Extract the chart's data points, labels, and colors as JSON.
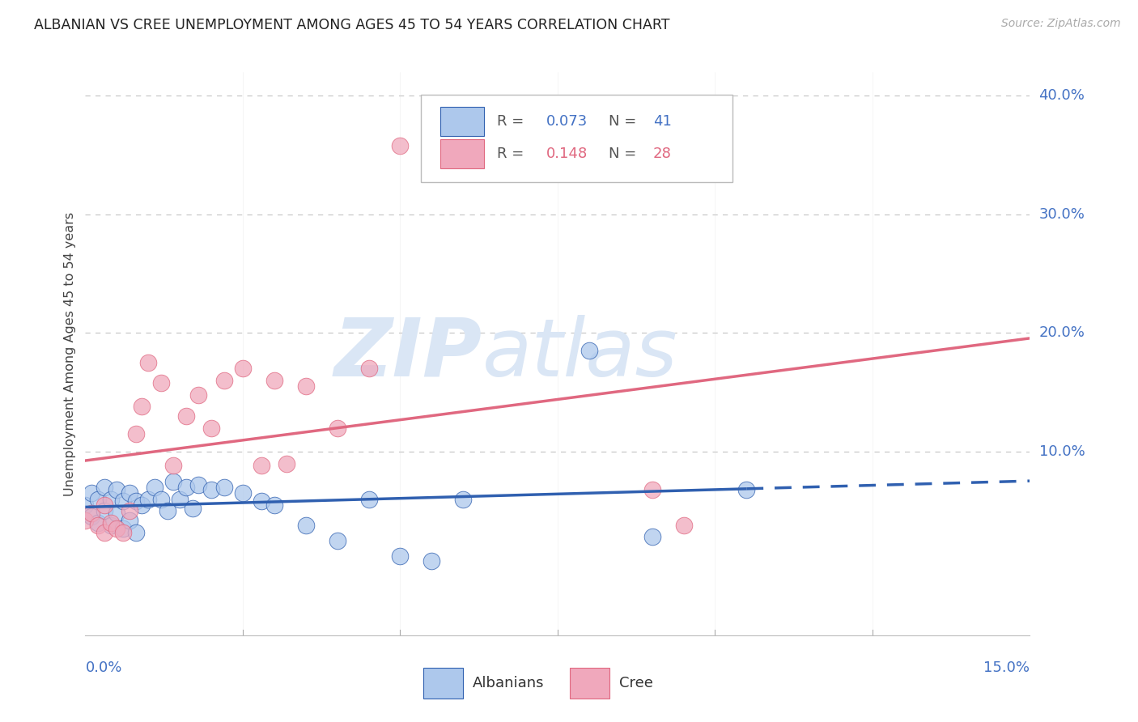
{
  "title": "ALBANIAN VS CREE UNEMPLOYMENT AMONG AGES 45 TO 54 YEARS CORRELATION CHART",
  "source": "Source: ZipAtlas.com",
  "ylabel": "Unemployment Among Ages 45 to 54 years",
  "ytick_values": [
    0.1,
    0.2,
    0.3,
    0.4
  ],
  "ytick_labels": [
    "10.0%",
    "20.0%",
    "30.0%",
    "40.0%"
  ],
  "xlim": [
    0.0,
    0.15
  ],
  "ylim": [
    -0.055,
    0.42
  ],
  "albanian_color": "#adc8ec",
  "cree_color": "#f0a8bc",
  "albanian_line_color": "#3060b0",
  "cree_line_color": "#e06880",
  "albanian_x": [
    0.0,
    0.001,
    0.001,
    0.002,
    0.002,
    0.003,
    0.003,
    0.004,
    0.004,
    0.005,
    0.005,
    0.006,
    0.006,
    0.007,
    0.007,
    0.008,
    0.008,
    0.009,
    0.01,
    0.011,
    0.012,
    0.013,
    0.014,
    0.015,
    0.016,
    0.017,
    0.018,
    0.02,
    0.022,
    0.025,
    0.028,
    0.03,
    0.035,
    0.04,
    0.045,
    0.05,
    0.055,
    0.06,
    0.08,
    0.09,
    0.105
  ],
  "albanian_y": [
    0.055,
    0.065,
    0.045,
    0.06,
    0.04,
    0.07,
    0.05,
    0.06,
    0.038,
    0.068,
    0.048,
    0.058,
    0.035,
    0.065,
    0.042,
    0.058,
    0.032,
    0.055,
    0.06,
    0.07,
    0.06,
    0.05,
    0.075,
    0.06,
    0.07,
    0.052,
    0.072,
    0.068,
    0.07,
    0.065,
    0.058,
    0.055,
    0.038,
    0.025,
    0.06,
    0.012,
    0.008,
    0.06,
    0.185,
    0.028,
    0.068
  ],
  "cree_x": [
    0.0,
    0.001,
    0.002,
    0.003,
    0.003,
    0.004,
    0.005,
    0.006,
    0.007,
    0.008,
    0.009,
    0.01,
    0.012,
    0.014,
    0.016,
    0.018,
    0.02,
    0.022,
    0.025,
    0.028,
    0.03,
    0.032,
    0.035,
    0.04,
    0.045,
    0.05,
    0.09,
    0.095
  ],
  "cree_y": [
    0.042,
    0.048,
    0.038,
    0.055,
    0.032,
    0.04,
    0.035,
    0.032,
    0.05,
    0.115,
    0.138,
    0.175,
    0.158,
    0.088,
    0.13,
    0.148,
    0.12,
    0.16,
    0.17,
    0.088,
    0.16,
    0.09,
    0.155,
    0.12,
    0.17,
    0.358,
    0.068,
    0.038
  ],
  "background_color": "#ffffff",
  "grid_color": "#c8c8c8",
  "title_color": "#222222",
  "axis_color": "#4472c4",
  "watermark_zip": "ZIP",
  "watermark_atlas": "atlas",
  "watermark_color": "#dae6f5"
}
